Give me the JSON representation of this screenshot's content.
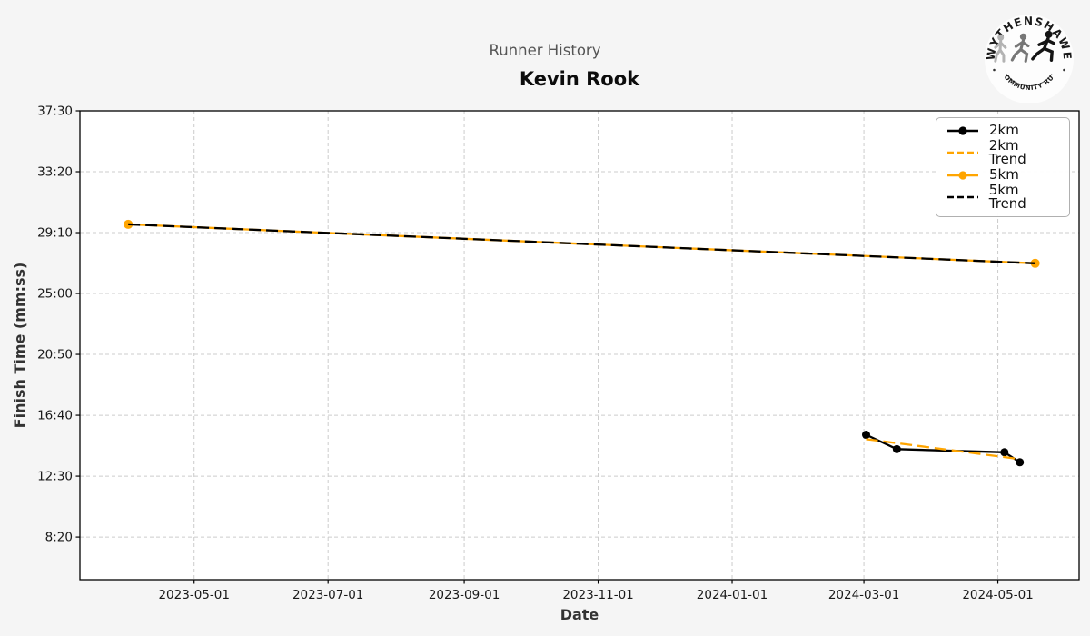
{
  "header": {
    "subtitle": "Runner History",
    "title": "Kevin Rook"
  },
  "logo": {
    "top_text": "WYTHENSHAWE",
    "bottom_text": "COMMUNITY RUN"
  },
  "chart_data": {
    "type": "line",
    "title": "Kevin Rook",
    "subtitle": "Runner History",
    "xlabel": "Date",
    "ylabel": "Finish Time (mm:ss)",
    "x_ticks": [
      "2023-05-01",
      "2023-07-01",
      "2023-09-01",
      "2023-11-01",
      "2024-01-01",
      "2024-03-01",
      "2024-05-01"
    ],
    "y_ticks": [
      "37:30",
      "33:20",
      "29:10",
      "25:00",
      "20:50",
      "16:40",
      "12:30",
      "8:20"
    ],
    "x_domain": [
      "2023-03-10",
      "2024-06-07"
    ],
    "y_domain": [
      "5:25",
      "37:30"
    ],
    "grid": true,
    "legend": {
      "position": "upper right",
      "entries": [
        "2km",
        "2km Trend",
        "5km",
        "5km Trend"
      ]
    },
    "series": [
      {
        "name": "2km",
        "color": "#000000",
        "line": "solid",
        "marker": "circle",
        "marker_radius": 4.5,
        "points": [
          [
            "2024-03-02",
            "15:20"
          ],
          [
            "2024-03-16",
            "14:21"
          ],
          [
            "2024-05-04",
            "14:08"
          ],
          [
            "2024-05-11",
            "13:27"
          ]
        ]
      },
      {
        "name": "2km Trend",
        "color": "#FFA500",
        "line": "dashed",
        "marker": "none",
        "points": [
          [
            "2024-03-02",
            "15:02"
          ],
          [
            "2024-05-11",
            "13:40"
          ]
        ]
      },
      {
        "name": "5km",
        "color": "#FFA500",
        "line": "solid",
        "marker": "circle",
        "marker_radius": 5,
        "points": [
          [
            "2023-04-01",
            "29:44"
          ],
          [
            "2024-05-18",
            "27:04"
          ]
        ]
      },
      {
        "name": "5km Trend",
        "color": "#000000",
        "line": "dashed",
        "marker": "none",
        "points": [
          [
            "2023-04-01",
            "29:44"
          ],
          [
            "2024-05-18",
            "27:04"
          ]
        ]
      }
    ]
  },
  "colors": {
    "figure_bg": "#f5f5f5",
    "plot_bg": "#ffffff",
    "grid": "#cccccc",
    "spine": "#000000",
    "subtitle_gray": "#555555",
    "axis_label": "#333333",
    "tick_label": "#1a1a1a",
    "accent_orange": "#FFA500"
  }
}
